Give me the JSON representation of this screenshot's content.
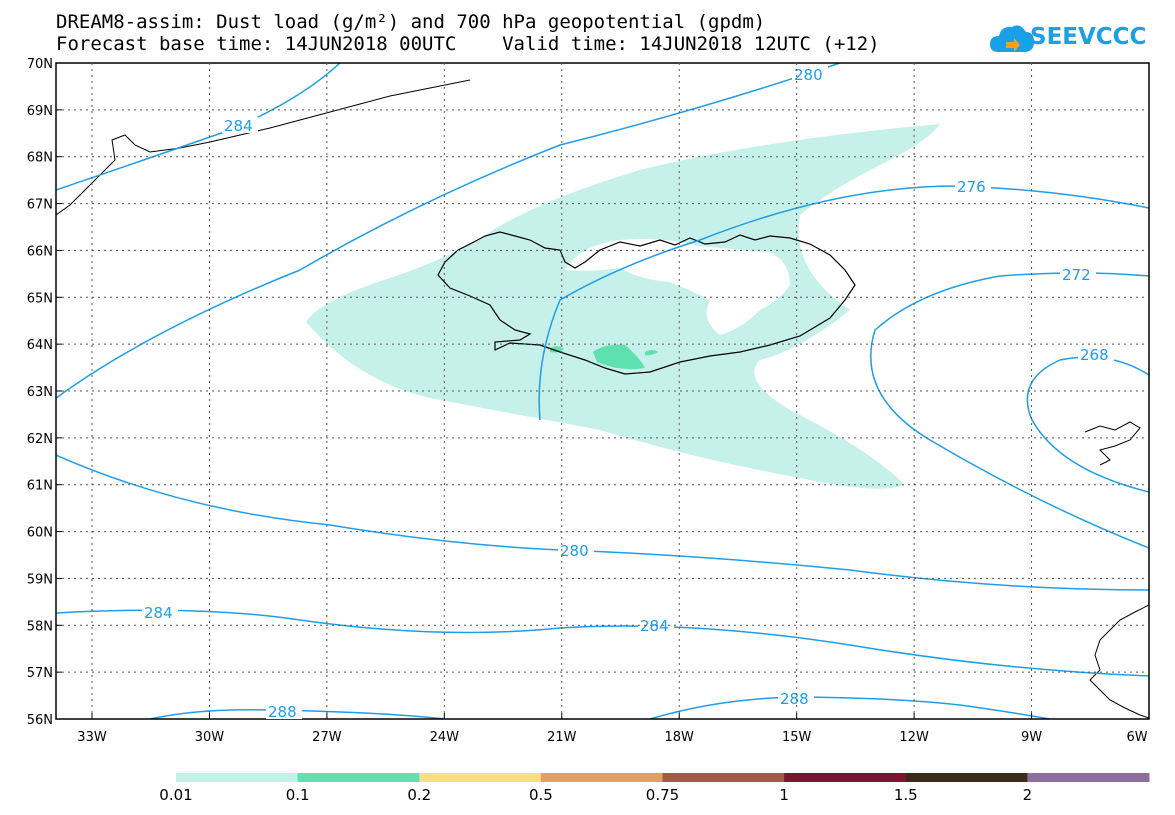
{
  "header": {
    "title_line1": "DREAM8-assim: Dust load (g/m²) and 700 hPa geopotential (gpdm)",
    "title_line2": "Forecast base time: 14JUN2018 00UTC    Valid time: 14JUN2018 12UTC (+12)"
  },
  "logo": {
    "text": "SEEVCCC",
    "icon": "cloud-logo-icon",
    "color": "#1aa0e6"
  },
  "map": {
    "lat_labels": [
      "70N",
      "69N",
      "68N",
      "67N",
      "66N",
      "65N",
      "64N",
      "63N",
      "62N",
      "61N",
      "60N",
      "59N",
      "58N",
      "57N",
      "56N"
    ],
    "lon_labels": [
      "33W",
      "30W",
      "27W",
      "24W",
      "21W",
      "18W",
      "15W",
      "12W",
      "9W",
      "6W"
    ],
    "contour_color": "#1e9ee8",
    "contour_labels": [
      "284",
      "280",
      "276",
      "272",
      "268",
      "280",
      "284",
      "284",
      "288",
      "288"
    ]
  },
  "colorbar": {
    "colors": [
      "#c6f0ea",
      "#5ee0b0",
      "#f5e27a",
      "#e99b6c",
      "#a8574a",
      "#7e1530",
      "#3d2a18",
      "#8e6e9c"
    ],
    "labels": [
      "0.01",
      "0.1",
      "0.2",
      "0.5",
      "0.75",
      "1",
      "1.5",
      "2"
    ]
  }
}
